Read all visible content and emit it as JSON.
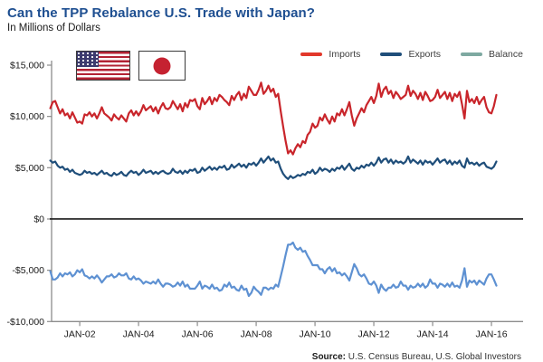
{
  "header": {
    "title": "Can the TPP Rebalance U.S. Trade with Japan?",
    "subtitle": "In Millions of Dollars"
  },
  "flags": {
    "us_label": "united-states-flag",
    "japan_label": "japan-flag"
  },
  "legend": {
    "items": [
      {
        "label": "Imports",
        "color": "#e2382b"
      },
      {
        "label": "Exports",
        "color": "#1f4e7a"
      },
      {
        "label": "Balance",
        "color": "#7ea9a1"
      }
    ]
  },
  "source": {
    "label_bold": "Source:",
    "text": " U.S. Census Bureau, U.S. Global Investors"
  },
  "chart_data": {
    "type": "line",
    "title": "Can the TPP Rebalance U.S. Trade with Japan?",
    "units": "Millions of Dollars",
    "x_axis": {
      "start": "JAN-2001",
      "end": "MAR-2016",
      "interval": "monthly",
      "ticks": [
        {
          "label": "JAN-02",
          "month": 12
        },
        {
          "label": "JAN-04",
          "month": 36
        },
        {
          "label": "JAN-06",
          "month": 60
        },
        {
          "label": "JAN-08",
          "month": 84
        },
        {
          "label": "JAN-10",
          "month": 108
        },
        {
          "label": "JAN-12",
          "month": 132
        },
        {
          "label": "JAN-14",
          "month": 156
        },
        {
          "label": "JAN-16",
          "month": 180
        }
      ]
    },
    "y_axis": {
      "ylim": [
        -10000,
        15000
      ],
      "zero_line": true,
      "grid": false,
      "ticks": [
        {
          "label": "$15,000",
          "value": 15000
        },
        {
          "label": "$10,000",
          "value": 10000
        },
        {
          "label": "$5,000",
          "value": 5000
        },
        {
          "label": "$0",
          "value": 0
        },
        {
          "label": "-$5,000",
          "value": -5000
        },
        {
          "label": "-$10,000",
          "value": -10000
        }
      ]
    },
    "legend_position": "top-right",
    "series": [
      {
        "name": "Imports",
        "color": "#c9252b",
        "values": [
          10800,
          11400,
          11500,
          10900,
          10300,
          10700,
          10100,
          10300,
          9800,
          10400,
          9900,
          9400,
          9500,
          9300,
          10200,
          10100,
          10400,
          10000,
          10300,
          9800,
          10300,
          10900,
          10300,
          10100,
          9900,
          9600,
          10200,
          9900,
          9700,
          10100,
          9800,
          9500,
          10300,
          10600,
          10100,
          10500,
          10100,
          10500,
          11100,
          10600,
          10800,
          11000,
          10500,
          10900,
          10300,
          10900,
          11300,
          10800,
          10700,
          10900,
          11500,
          11100,
          10700,
          11200,
          10500,
          11300,
          10900,
          11600,
          11500,
          11700,
          11000,
          10700,
          11800,
          11200,
          11500,
          11900,
          11200,
          11800,
          11500,
          12100,
          11900,
          11600,
          11400,
          11100,
          12000,
          11600,
          12100,
          12400,
          11600,
          12200,
          11800,
          12900,
          12500,
          12100,
          12100,
          12600,
          13300,
          12200,
          12500,
          13000,
          12400,
          12700,
          11900,
          12200,
          10500,
          9000,
          7600,
          6400,
          6700,
          6300,
          6900,
          7300,
          7000,
          7600,
          7400,
          8200,
          8500,
          9300,
          8900,
          9100,
          9900,
          9600,
          10200,
          9700,
          9300,
          10000,
          9500,
          10300,
          10100,
          10700,
          10100,
          10700,
          11400,
          10100,
          9100,
          9800,
          10300,
          10800,
          10400,
          11100,
          11500,
          11900,
          11300,
          12000,
          13200,
          11900,
          12600,
          12900,
          12200,
          12500,
          11800,
          12400,
          12100,
          11700,
          11900,
          12100,
          13000,
          12000,
          12500,
          12200,
          11700,
          12300,
          11600,
          12400,
          12000,
          11500,
          11600,
          11900,
          12600,
          11800,
          12100,
          12400,
          11700,
          12300,
          11500,
          12200,
          11900,
          12400,
          11200,
          9800,
          12500,
          11400,
          11700,
          11300,
          11900,
          11200,
          11600,
          11900,
          10900,
          10400,
          10300,
          11000,
          12100
        ]
      },
      {
        "name": "Exports",
        "color": "#1f4e7a",
        "values": [
          5700,
          5500,
          5600,
          5200,
          5000,
          5100,
          4800,
          4900,
          4600,
          4800,
          4500,
          4400,
          4300,
          4400,
          4700,
          4500,
          4600,
          4400,
          4500,
          4300,
          4500,
          4700,
          4400,
          4500,
          4300,
          4200,
          4500,
          4300,
          4400,
          4600,
          4300,
          4200,
          4500,
          4700,
          4500,
          4600,
          4300,
          4500,
          4800,
          4500,
          4600,
          4700,
          4400,
          4600,
          4400,
          4600,
          4700,
          4500,
          4400,
          4500,
          4900,
          4600,
          4500,
          4700,
          4400,
          4700,
          4500,
          4800,
          4700,
          4900,
          4500,
          4600,
          5000,
          4700,
          4900,
          5100,
          4800,
          5000,
          4800,
          5100,
          5000,
          5200,
          4800,
          4900,
          5300,
          5000,
          5200,
          5400,
          5100,
          5300,
          5000,
          5400,
          5300,
          5500,
          5200,
          5500,
          5900,
          5500,
          5800,
          6100,
          5700,
          5900,
          5500,
          5600,
          4900,
          4400,
          4100,
          3900,
          4200,
          4000,
          4100,
          4300,
          4200,
          4400,
          4300,
          4600,
          4500,
          4800,
          4400,
          4600,
          5000,
          4700,
          4900,
          4800,
          4600,
          4900,
          4700,
          5000,
          4900,
          5200,
          4800,
          5100,
          5400,
          4900,
          4700,
          5000,
          4900,
          5200,
          5000,
          5300,
          5200,
          5500,
          5200,
          5500,
          6000,
          5500,
          5800,
          5900,
          5500,
          5800,
          5400,
          5700,
          5500,
          5600,
          5400,
          5600,
          6100,
          5500,
          5800,
          5600,
          5400,
          5700,
          5300,
          5700,
          5500,
          5600,
          5300,
          5600,
          5900,
          5500,
          5700,
          5800,
          5400,
          5700,
          5300,
          5600,
          5400,
          5700,
          5200,
          5000,
          5900,
          5400,
          5500,
          5300,
          5500,
          5200,
          5400,
          5500,
          5100,
          5000,
          4900,
          5100,
          5600
        ]
      },
      {
        "name": "Balance",
        "color": "#5e91d2",
        "values": [
          -5100,
          -5900,
          -5900,
          -5700,
          -5300,
          -5600,
          -5300,
          -5400,
          -5200,
          -5600,
          -5400,
          -5000,
          -5200,
          -4900,
          -5500,
          -5600,
          -5800,
          -5600,
          -5800,
          -5500,
          -5800,
          -6200,
          -5900,
          -5600,
          -5600,
          -5400,
          -5700,
          -5600,
          -5300,
          -5500,
          -5500,
          -5300,
          -5800,
          -5900,
          -5600,
          -5900,
          -5800,
          -6000,
          -6300,
          -6100,
          -6200,
          -6300,
          -6100,
          -6300,
          -5900,
          -6300,
          -6600,
          -6300,
          -6300,
          -6400,
          -6600,
          -6500,
          -6200,
          -6500,
          -6100,
          -6600,
          -6400,
          -6800,
          -6800,
          -6800,
          -6500,
          -6100,
          -6800,
          -6500,
          -6600,
          -6800,
          -6400,
          -6800,
          -6700,
          -7000,
          -6900,
          -6400,
          -6600,
          -6200,
          -6700,
          -6600,
          -6900,
          -7000,
          -6500,
          -6900,
          -6800,
          -7500,
          -7200,
          -6600,
          -6900,
          -7100,
          -7400,
          -6700,
          -6700,
          -6900,
          -6700,
          -6800,
          -6400,
          -6600,
          -5600,
          -4600,
          -3500,
          -2500,
          -2500,
          -2300,
          -2800,
          -3000,
          -2800,
          -3200,
          -3100,
          -3600,
          -4000,
          -4500,
          -4500,
          -4500,
          -4900,
          -4900,
          -5300,
          -4900,
          -4700,
          -5100,
          -4800,
          -5300,
          -5200,
          -5500,
          -5300,
          -5600,
          -6000,
          -5200,
          -4400,
          -4800,
          -5400,
          -5600,
          -5400,
          -5800,
          -6300,
          -6400,
          -6100,
          -6500,
          -7200,
          -6400,
          -6800,
          -7000,
          -6700,
          -6700,
          -6400,
          -6700,
          -6600,
          -6100,
          -6500,
          -6500,
          -6900,
          -6500,
          -6700,
          -6600,
          -6300,
          -6600,
          -6300,
          -6700,
          -6500,
          -5900,
          -6300,
          -6300,
          -6700,
          -6300,
          -6400,
          -6600,
          -6300,
          -6600,
          -6200,
          -6600,
          -6500,
          -6700,
          -6000,
          -4800,
          -6600,
          -6000,
          -6200,
          -6000,
          -6400,
          -6000,
          -6200,
          -6400,
          -5800,
          -5400,
          -5400,
          -5900,
          -6500
        ]
      }
    ]
  }
}
